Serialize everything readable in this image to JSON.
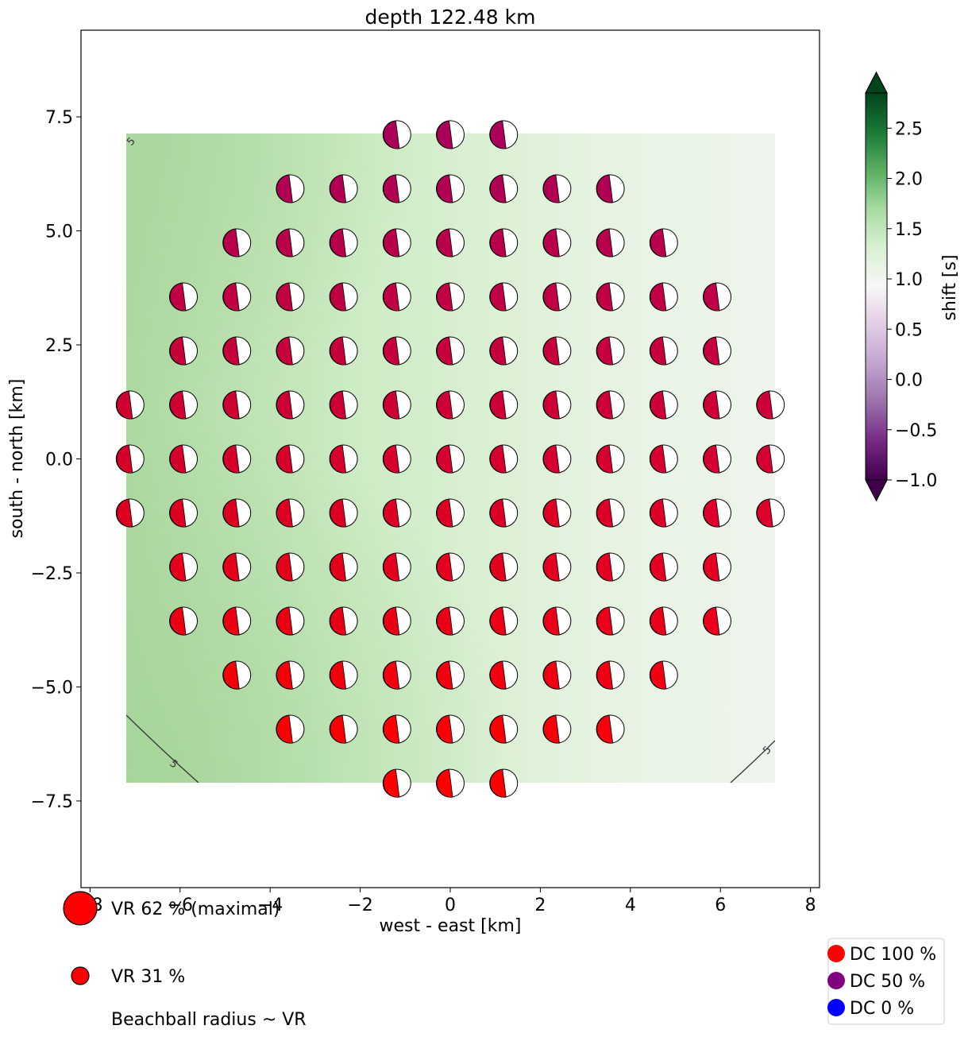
{
  "chart_data": {
    "type": "scatter",
    "title": "depth 122.48 km",
    "xlabel": "west - east [km]",
    "ylabel": "south - north [km]",
    "xlim": [
      -8.2,
      8.2
    ],
    "ylim": [
      -9.4,
      9.4
    ],
    "xticks": [
      -8,
      -6,
      -4,
      -2,
      0,
      2,
      4,
      6,
      8
    ],
    "xtick_labels": [
      "−8",
      "−6",
      "−4",
      "−2",
      "0",
      "2",
      "4",
      "6",
      "8"
    ],
    "yticks": [
      -7.5,
      -5.0,
      -2.5,
      0.0,
      2.5,
      5.0,
      7.5
    ],
    "ytick_labels": [
      "−7.5",
      "−5.0",
      "−2.5",
      "0.0",
      "2.5",
      "5.0",
      "7.5"
    ],
    "grid": false,
    "grid_spacing_km": 1.185,
    "grid_rows": [
      {
        "y": 7.11,
        "xs": [
          -1.185,
          0,
          1.185
        ]
      },
      {
        "y": 5.925,
        "xs": [
          -3.555,
          -2.37,
          -1.185,
          0,
          1.185,
          2.37,
          3.555
        ]
      },
      {
        "y": 4.74,
        "xs": [
          -4.74,
          -3.555,
          -2.37,
          -1.185,
          0,
          1.185,
          2.37,
          3.555,
          4.74
        ]
      },
      {
        "y": 3.555,
        "xs": [
          -5.925,
          -4.74,
          -3.555,
          -2.37,
          -1.185,
          0,
          1.185,
          2.37,
          3.555,
          4.74,
          5.925
        ]
      },
      {
        "y": 2.37,
        "xs": [
          -5.925,
          -4.74,
          -3.555,
          -2.37,
          -1.185,
          0,
          1.185,
          2.37,
          3.555,
          4.74,
          5.925
        ]
      },
      {
        "y": 1.185,
        "xs": [
          -7.11,
          -5.925,
          -4.74,
          -3.555,
          -2.37,
          -1.185,
          0,
          1.185,
          2.37,
          3.555,
          4.74,
          5.925,
          7.11
        ]
      },
      {
        "y": 0.0,
        "xs": [
          -7.11,
          -5.925,
          -4.74,
          -3.555,
          -2.37,
          -1.185,
          0,
          1.185,
          2.37,
          3.555,
          4.74,
          5.925,
          7.11
        ]
      },
      {
        "y": -1.185,
        "xs": [
          -7.11,
          -5.925,
          -4.74,
          -3.555,
          -2.37,
          -1.185,
          0,
          1.185,
          2.37,
          3.555,
          4.74,
          5.925,
          7.11
        ]
      },
      {
        "y": -2.37,
        "xs": [
          -5.925,
          -4.74,
          -3.555,
          -2.37,
          -1.185,
          0,
          1.185,
          2.37,
          3.555,
          4.74,
          5.925
        ]
      },
      {
        "y": -3.555,
        "xs": [
          -5.925,
          -4.74,
          -3.555,
          -2.37,
          -1.185,
          0,
          1.185,
          2.37,
          3.555,
          4.74,
          5.925
        ]
      },
      {
        "y": -4.74,
        "xs": [
          -4.74,
          -3.555,
          -2.37,
          -1.185,
          0,
          1.185,
          2.37,
          3.555,
          4.74
        ]
      },
      {
        "y": -5.925,
        "xs": [
          -3.555,
          -2.37,
          -1.185,
          0,
          1.185,
          2.37,
          3.555
        ]
      },
      {
        "y": -7.11,
        "xs": [
          -1.185,
          0,
          1.185
        ]
      }
    ],
    "contour_level_label": "5",
    "contour_label": "5",
    "colorbar": {
      "label": "shift [s]",
      "min": -1.0,
      "max": 2.85,
      "ticks": [
        -1.0,
        -0.5,
        0.0,
        0.5,
        1.0,
        1.5,
        2.0,
        2.5
      ],
      "tick_labels": [
        "−1.0",
        "−0.5",
        "0.0",
        "0.5",
        "1.0",
        "1.5",
        "2.0",
        "2.5"
      ],
      "colormap": "PRGn",
      "extend": "both"
    },
    "size_legend": [
      {
        "label": "VR 62 % (maximal)",
        "vr": 62
      },
      {
        "label": "VR 31 %",
        "vr": 31
      },
      {
        "label": "Beachball radius ~ VR"
      }
    ],
    "dc_legend": [
      {
        "label": "DC 100 %",
        "color": "#ff0000"
      },
      {
        "label": "DC 50 %",
        "color": "#800080"
      },
      {
        "label": "DC 0 %",
        "color": "#0000ff"
      }
    ]
  }
}
